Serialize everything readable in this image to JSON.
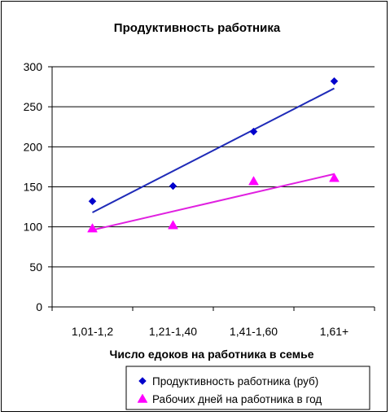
{
  "chart_data": {
    "type": "scatter",
    "title": "Продуктивность  работника",
    "xlabel": "Число едоков на работника в семье",
    "ylabel": "",
    "categories": [
      "1,01-1,2",
      "1,21-1,40",
      "1,41-1,60",
      "1,61+"
    ],
    "ylim": [
      0,
      300
    ],
    "yticks": [
      0,
      50,
      100,
      150,
      200,
      250,
      300
    ],
    "grid": true,
    "legend_position": "bottom-right",
    "series": [
      {
        "name": "Продуктивность работника (руб)",
        "values": [
          132,
          151,
          219,
          282
        ],
        "marker": "diamond",
        "color": "#0000cc",
        "trendline": {
          "type": "linear",
          "start": 118,
          "end": 273,
          "color": "#1f2bb8"
        }
      },
      {
        "name": "Рабочих дней на работника в год",
        "values": [
          98,
          102,
          157,
          161
        ],
        "marker": "triangle",
        "color": "#ff00ff",
        "trendline": {
          "type": "linear",
          "start": 96,
          "end": 166,
          "color": "#e020e0"
        }
      }
    ]
  }
}
